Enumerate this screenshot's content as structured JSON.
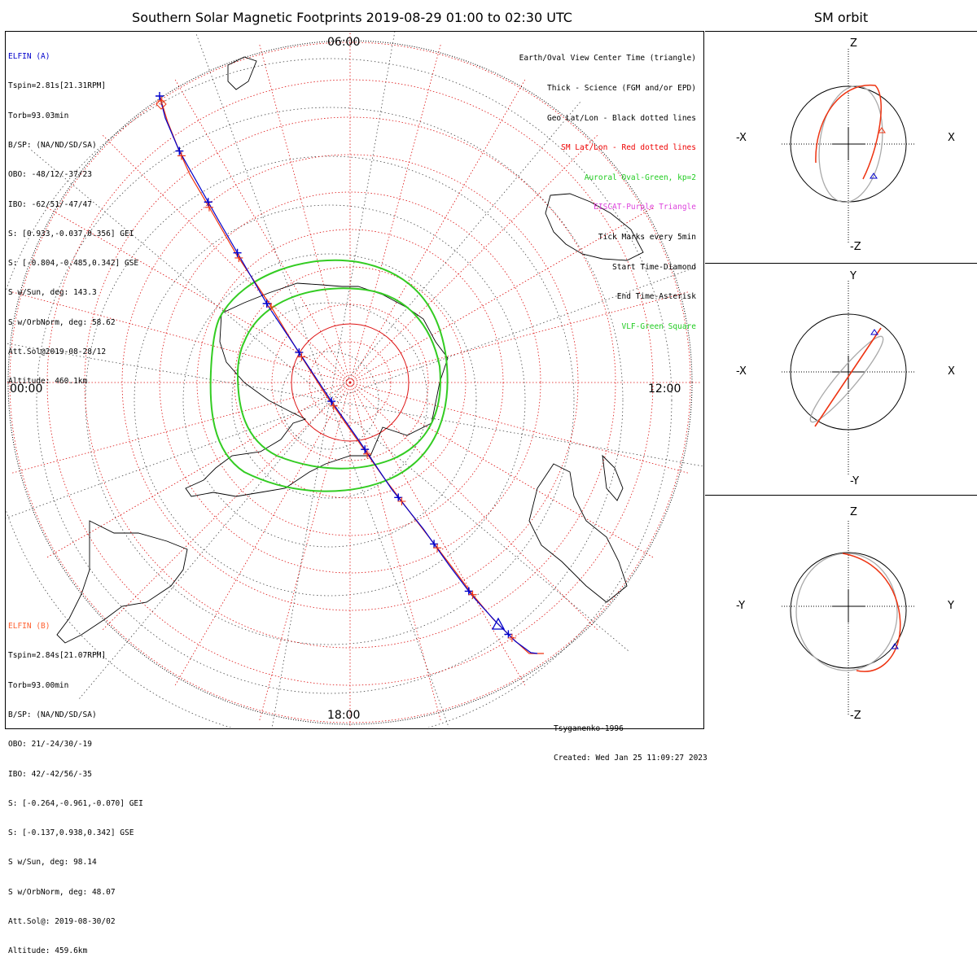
{
  "title": "Southern Solar Magnetic Footprints 2019-08-29 01:00 to 02:30 UTC",
  "orbit_title": "SM orbit",
  "elfin_a": {
    "name": "ELFIN (A)",
    "color": "#0000cc",
    "lines": [
      "Tspin=2.81s[21.31RPM]",
      "Torb=93.03min",
      "B/SP: (NA/ND/SD/SA)",
      "OBO: -48/12/-37/23",
      "IBO: -62/51/-47/47",
      "S: [0.933,-0.037,0.356] GEI",
      "S: [-0.804,-0.485,0.342] GSE",
      "S w/Sun, deg: 143.3",
      "S w/OrbNorm, deg: 58.62",
      "Att.Sol@2019-08-28/12",
      "Altitude: 460.1km"
    ]
  },
  "elfin_b": {
    "name": "ELFIN (B)",
    "color": "#ff6030",
    "lines": [
      "Tspin=2.84s[21.07RPM]",
      "Torb=93.00min",
      "B/SP: (NA/ND/SD/SA)",
      "OBO: 21/-24/30/-19",
      "IBO: 42/-42/56/-35",
      "S: [-0.264,-0.961,-0.070] GEI",
      "S: [-0.137,0.938,0.342] GSE",
      "S w/Sun, deg: 98.14",
      "S w/OrbNorm, deg: 48.07",
      "Att.Sol@: 2019-08-30/02",
      "Altitude: 459.6km"
    ]
  },
  "legend": [
    {
      "text": "Earth/Oval View Center Time (triangle)",
      "color": "#000000"
    },
    {
      "text": "Thick - Science (FGM and/or EPD)",
      "color": "#000000"
    },
    {
      "text": "Geo Lat/Lon - Black dotted lines",
      "color": "#000000"
    },
    {
      "text": "SM Lat/Lon - Red dotted lines",
      "color": "#ee0000"
    },
    {
      "text": "Auroral Oval-Green, kp=2",
      "color": "#22cc22"
    },
    {
      "text": "EISCAT-Purple Triangle",
      "color": "#dd44dd"
    },
    {
      "text": "Tick Marks every 5min",
      "color": "#000000"
    },
    {
      "text": "Start Time-Diamond",
      "color": "#000000"
    },
    {
      "text": "End Time-Asterisk",
      "color": "#000000"
    },
    {
      "text": "VLF-Green Square",
      "color": "#22cc22"
    }
  ],
  "time_labels": {
    "top": "06:00",
    "left": "00:00",
    "right": "12:00",
    "bottom": "18:00"
  },
  "credits": [
    "Tsyganenko-1996",
    "Created: Wed Jan 25 11:09:27 2023"
  ],
  "panels": [
    {
      "top": "Z",
      "bottom": "-Z",
      "left": "-X",
      "right": "X"
    },
    {
      "top": "Y",
      "bottom": "-Y",
      "left": "-X",
      "right": "X"
    },
    {
      "top": "Z",
      "bottom": "-Z",
      "left": "-Y",
      "right": "Y"
    }
  ],
  "colors": {
    "track_a": "#0000cc",
    "track_b": "#ee3311",
    "oval": "#33cc22",
    "sm_grid": "#dd1111",
    "orbit_gray": "#aaaaaa"
  },
  "chart_data": {
    "type": "polar-map",
    "hemisphere": "south",
    "start": "2019-08-29 01:00",
    "end": "2019-08-29 02:30",
    "model": "Tsyganenko-1996",
    "auroral_oval_kp": 2,
    "tick_interval_min": 5,
    "series": [
      {
        "name": "ELFIN (A)"
      },
      {
        "name": "ELFIN (B)"
      }
    ]
  }
}
